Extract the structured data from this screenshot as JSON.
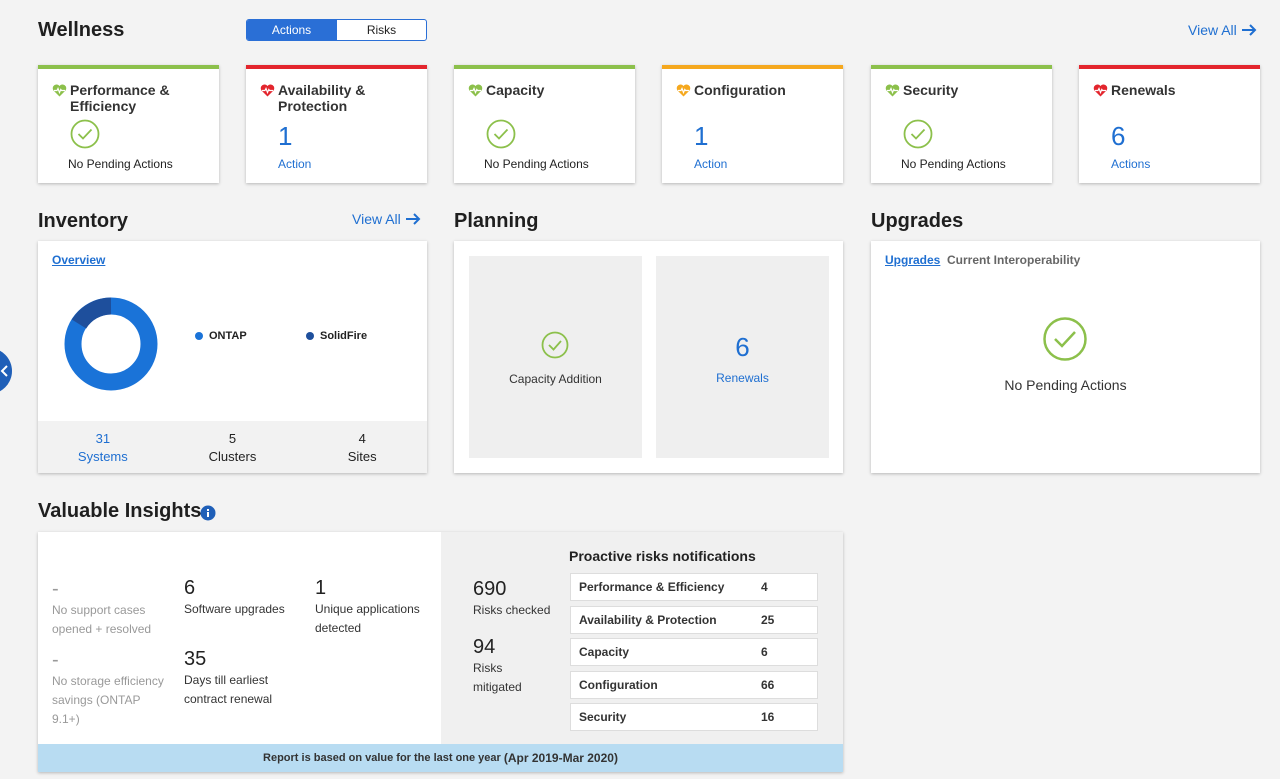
{
  "wellness": {
    "title": "Wellness",
    "toggle": {
      "actions": "Actions",
      "risks": "Risks"
    },
    "view_all": "View All",
    "cards": [
      {
        "title": "Performance & Efficiency",
        "status": "No Pending Actions",
        "color": "#8cc04b"
      },
      {
        "title": "Availability & Protection",
        "count": "1",
        "label": "Action",
        "color": "#e3252d"
      },
      {
        "title": "Capacity",
        "status": "No Pending Actions",
        "color": "#8cc04b"
      },
      {
        "title": "Configuration",
        "count": "1",
        "label": "Action",
        "color": "#f5a81e"
      },
      {
        "title": "Security",
        "status": "No Pending Actions",
        "color": "#8cc04b"
      },
      {
        "title": "Renewals",
        "count": "6",
        "label": "Actions",
        "color": "#e3252d"
      }
    ]
  },
  "inventory": {
    "title": "Inventory",
    "view_all": "View All",
    "tab": "Overview",
    "legend": [
      {
        "label": "ONTAP",
        "color": "#1a73d8"
      },
      {
        "label": "SolidFire",
        "color": "#1e4f9c"
      }
    ],
    "stats": [
      {
        "value": "31",
        "label": "Systems"
      },
      {
        "value": "5",
        "label": "Clusters"
      },
      {
        "value": "4",
        "label": "Sites"
      }
    ]
  },
  "planning": {
    "title": "Planning",
    "capacity_label": "Capacity Addition",
    "renewals_count": "6",
    "renewals_label": "Renewals"
  },
  "upgrades": {
    "title": "Upgrades",
    "tabs": [
      "Upgrades",
      "Current Interoperability"
    ],
    "status": "No Pending Actions"
  },
  "insights": {
    "title": "Valuable Insights",
    "support": {
      "value": "-",
      "label_1": "No support cases",
      "label_2": "opened + resolved"
    },
    "storage": {
      "value": "-",
      "label_1": "No storage efficiency",
      "label_2": "savings (ONTAP",
      "label_3": "9.1+)"
    },
    "software": {
      "value": "6",
      "label": "Software upgrades"
    },
    "renewal": {
      "value": "35",
      "label_1": "Days till earliest",
      "label_2": "contract renewal"
    },
    "apps": {
      "value": "1",
      "label_1": "Unique applications",
      "label_2": "detected"
    },
    "risks_checked": {
      "value": "690",
      "label": "Risks checked"
    },
    "risks_mitigated": {
      "value": "94",
      "label_1": "Risks",
      "label_2": "mitigated"
    },
    "proactive_title": "Proactive risks notifications",
    "risk_rows": [
      {
        "name": "Performance & Efficiency",
        "count": "4"
      },
      {
        "name": "Availability & Protection",
        "count": "25"
      },
      {
        "name": "Capacity",
        "count": "6"
      },
      {
        "name": "Configuration",
        "count": "66"
      },
      {
        "name": "Security",
        "count": "16"
      }
    ],
    "footer_main": "Report is based on value for the last one year ",
    "footer_range": "(Apr 2019-Mar 2020)"
  }
}
